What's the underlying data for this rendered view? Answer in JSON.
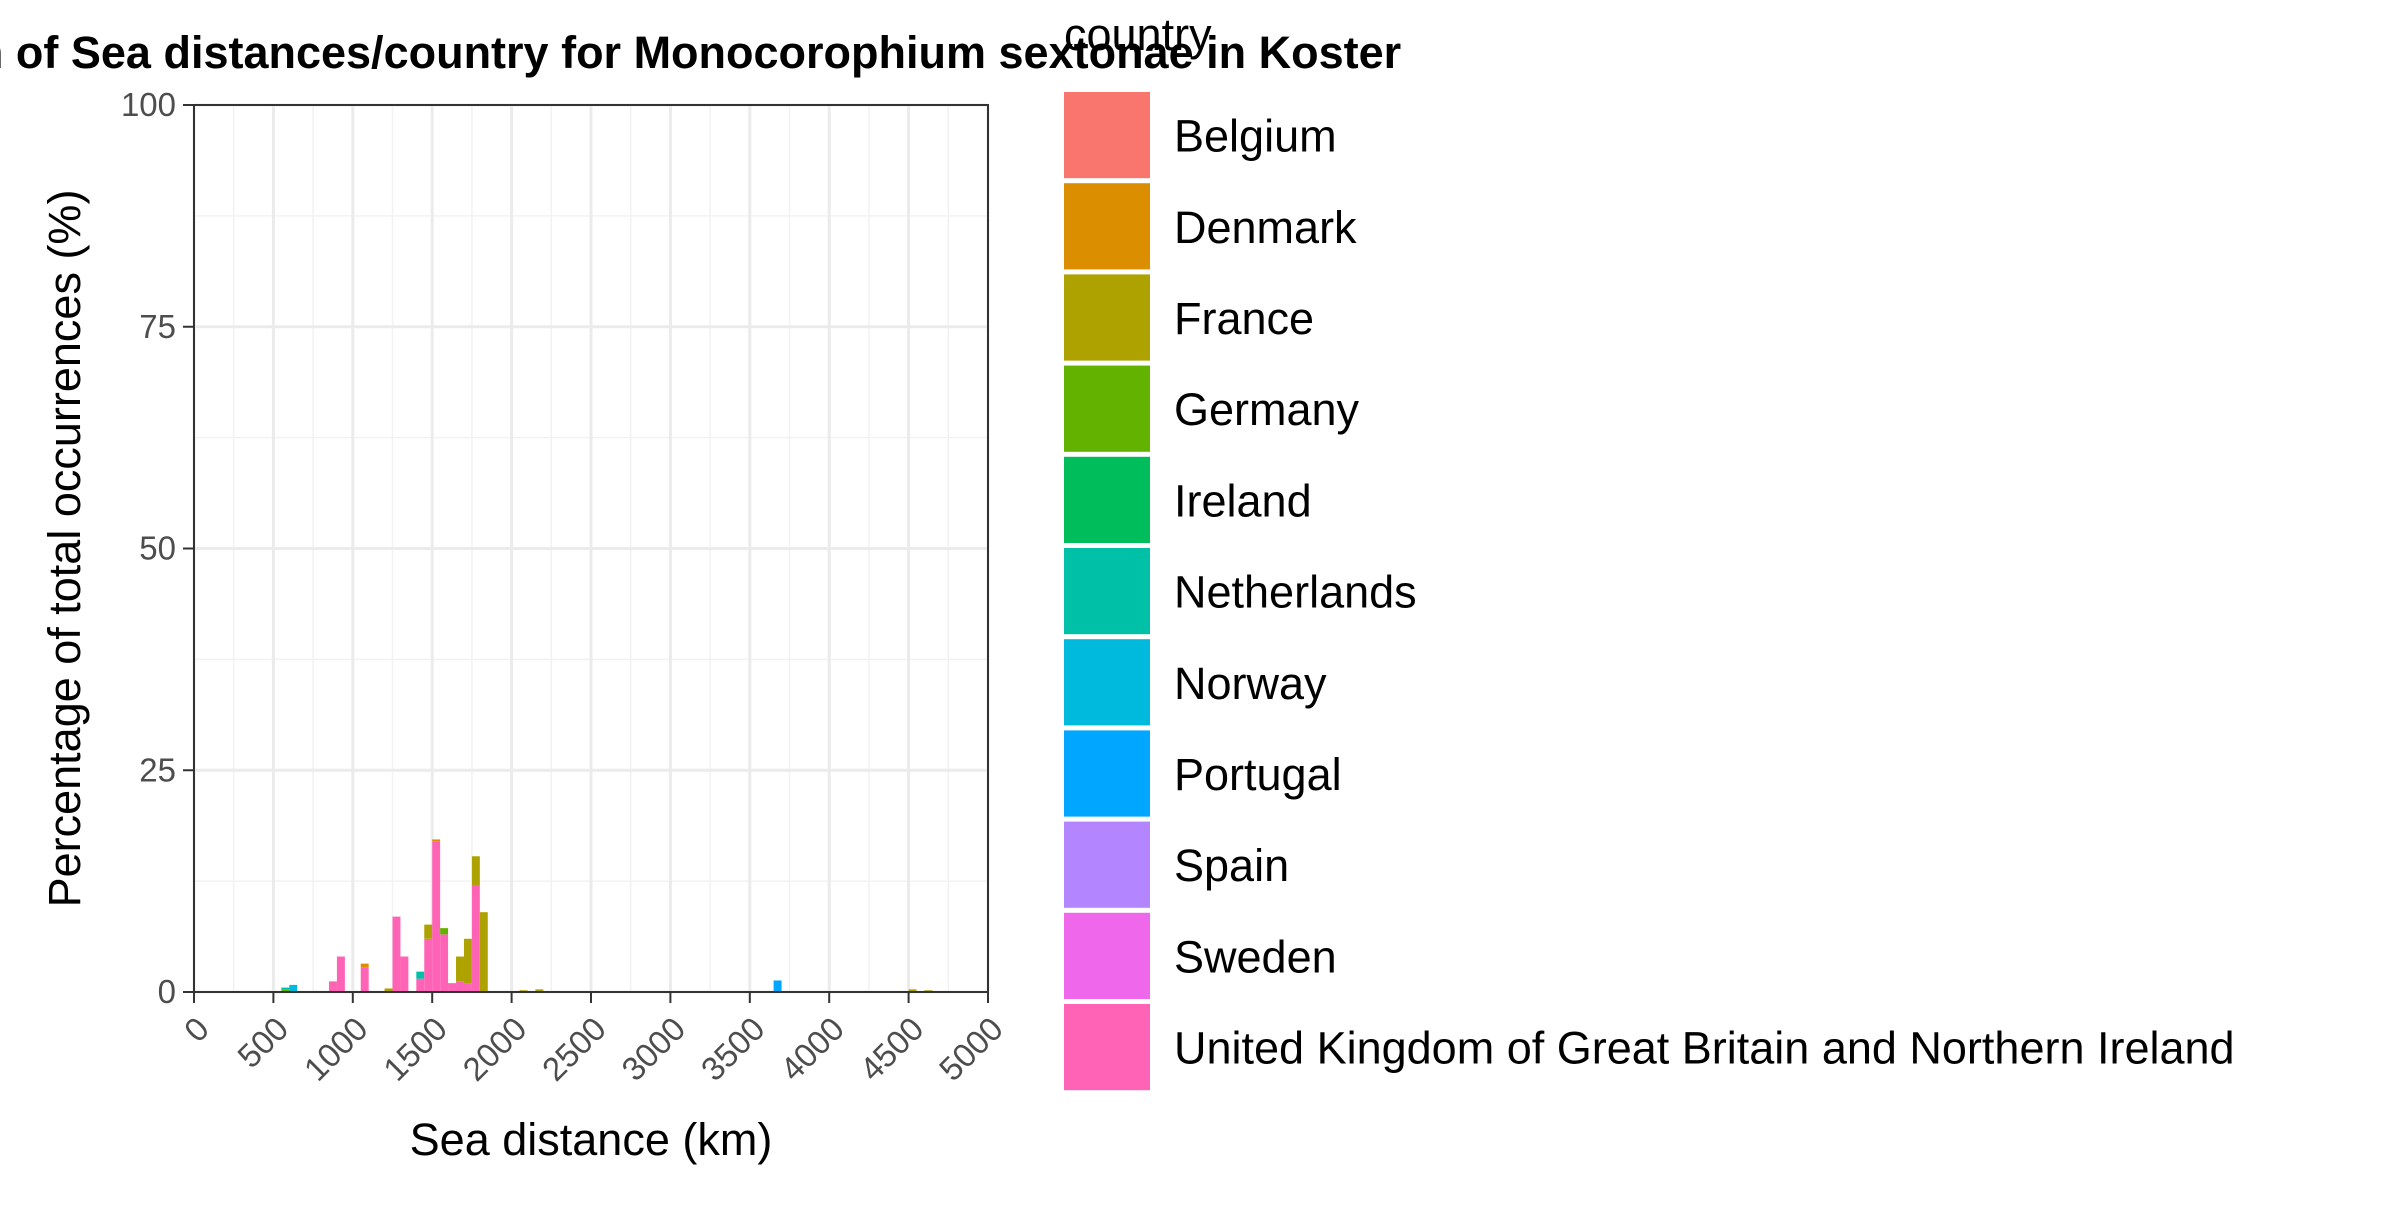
{
  "chart_data": {
    "type": "bar",
    "stacked": true,
    "title": "Histogram of Sea distances/country for Monocorophium sextonae in Koster",
    "xlabel": "Sea distance (km)",
    "ylabel": "Percentage of total occurrences (%)",
    "xlim": [
      0,
      5000
    ],
    "ylim": [
      0,
      100
    ],
    "x_ticks": [
      0,
      500,
      1000,
      1500,
      2000,
      2500,
      3000,
      3500,
      4000,
      4500,
      5000
    ],
    "y_ticks": [
      0,
      25,
      50,
      75,
      100
    ],
    "bin_width": 50,
    "grid": true,
    "legend_position": "right",
    "legend": {
      "title": "country",
      "entries": [
        {
          "name": "Belgium",
          "color": "#F8766D"
        },
        {
          "name": "Denmark",
          "color": "#DB8E00"
        },
        {
          "name": "France",
          "color": "#AEA200"
        },
        {
          "name": "Germany",
          "color": "#64B200"
        },
        {
          "name": "Ireland",
          "color": "#00BD5C"
        },
        {
          "name": "Netherlands",
          "color": "#00C1A7"
        },
        {
          "name": "Norway",
          "color": "#00BADE"
        },
        {
          "name": "Portugal",
          "color": "#00A6FF"
        },
        {
          "name": "Spain",
          "color": "#B385FF"
        },
        {
          "name": "Sweden",
          "color": "#EF67EB"
        },
        {
          "name": "United Kingdom of Great Britain and Northern Ireland",
          "color": "#FF63B6"
        }
      ]
    },
    "bars": [
      {
        "x": 575,
        "segments": [
          {
            "country": "Germany",
            "value": 0.3
          },
          {
            "country": "Netherlands",
            "value": 0.2
          }
        ]
      },
      {
        "x": 625,
        "segments": [
          {
            "country": "Norway",
            "value": 0.8
          }
        ]
      },
      {
        "x": 875,
        "segments": [
          {
            "country": "United Kingdom of Great Britain and Northern Ireland",
            "value": 1.2
          }
        ]
      },
      {
        "x": 925,
        "segments": [
          {
            "country": "United Kingdom of Great Britain and Northern Ireland",
            "value": 4.0
          }
        ]
      },
      {
        "x": 1075,
        "segments": [
          {
            "country": "United Kingdom of Great Britain and Northern Ireland",
            "value": 2.8
          },
          {
            "country": "Denmark",
            "value": 0.4
          }
        ]
      },
      {
        "x": 1225,
        "segments": [
          {
            "country": "France",
            "value": 0.4
          }
        ]
      },
      {
        "x": 1275,
        "segments": [
          {
            "country": "United Kingdom of Great Britain and Northern Ireland",
            "value": 8.5
          }
        ]
      },
      {
        "x": 1325,
        "segments": [
          {
            "country": "United Kingdom of Great Britain and Northern Ireland",
            "value": 4.0
          }
        ]
      },
      {
        "x": 1425,
        "segments": [
          {
            "country": "United Kingdom of Great Britain and Northern Ireland",
            "value": 1.5
          },
          {
            "country": "Netherlands",
            "value": 0.8
          }
        ]
      },
      {
        "x": 1475,
        "segments": [
          {
            "country": "United Kingdom of Great Britain and Northern Ireland",
            "value": 6.0
          },
          {
            "country": "France",
            "value": 1.6
          }
        ]
      },
      {
        "x": 1525,
        "segments": [
          {
            "country": "United Kingdom of Great Britain and Northern Ireland",
            "value": 17.0
          },
          {
            "country": "Denmark",
            "value": 0.2
          }
        ]
      },
      {
        "x": 1575,
        "segments": [
          {
            "country": "United Kingdom of Great Britain and Northern Ireland",
            "value": 6.5
          },
          {
            "country": "Germany",
            "value": 0.7
          }
        ]
      },
      {
        "x": 1625,
        "segments": [
          {
            "country": "United Kingdom of Great Britain and Northern Ireland",
            "value": 1.0
          }
        ]
      },
      {
        "x": 1675,
        "segments": [
          {
            "country": "United Kingdom of Great Britain and Northern Ireland",
            "value": 1.2
          },
          {
            "country": "France",
            "value": 2.8
          }
        ]
      },
      {
        "x": 1725,
        "segments": [
          {
            "country": "United Kingdom of Great Britain and Northern Ireland",
            "value": 1.0
          },
          {
            "country": "France",
            "value": 5.0
          }
        ]
      },
      {
        "x": 1775,
        "segments": [
          {
            "country": "United Kingdom of Great Britain and Northern Ireland",
            "value": 12.0
          },
          {
            "country": "France",
            "value": 3.3
          }
        ]
      },
      {
        "x": 1825,
        "segments": [
          {
            "country": "France",
            "value": 9.0
          }
        ]
      },
      {
        "x": 2075,
        "segments": [
          {
            "country": "France",
            "value": 0.2
          }
        ]
      },
      {
        "x": 2175,
        "segments": [
          {
            "country": "France",
            "value": 0.3
          }
        ]
      },
      {
        "x": 3675,
        "segments": [
          {
            "country": "Portugal",
            "value": 1.3
          }
        ]
      },
      {
        "x": 4525,
        "segments": [
          {
            "country": "France",
            "value": 0.3
          }
        ]
      },
      {
        "x": 4625,
        "segments": [
          {
            "country": "France",
            "value": 0.2
          }
        ]
      }
    ]
  }
}
